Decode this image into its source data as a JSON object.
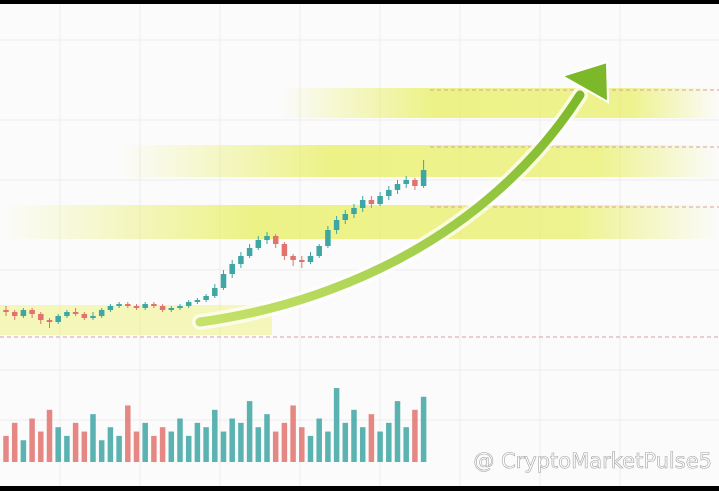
{
  "chart_data": {
    "type": "candlestick",
    "open": [
      15,
      14,
      12,
      15,
      13,
      10,
      9,
      12,
      14,
      13,
      11,
      12,
      15,
      17,
      18,
      17,
      16,
      18,
      17,
      15,
      16,
      17,
      19,
      20,
      22,
      26,
      33,
      38,
      42,
      46,
      50,
      52,
      48,
      42,
      40,
      39,
      42,
      47,
      55,
      60,
      63,
      66,
      70,
      68,
      72,
      75,
      78,
      80,
      77
    ],
    "close": [
      14,
      12,
      15,
      13,
      10,
      9,
      12,
      14,
      13,
      11,
      12,
      15,
      17,
      18,
      17,
      16,
      18,
      17,
      15,
      16,
      17,
      19,
      20,
      22,
      26,
      33,
      38,
      42,
      46,
      50,
      52,
      48,
      42,
      40,
      39,
      42,
      47,
      55,
      60,
      63,
      66,
      70,
      68,
      72,
      75,
      78,
      80,
      77,
      85
    ],
    "high": [
      17,
      15,
      16,
      16,
      14,
      11,
      13,
      15,
      16,
      14,
      14,
      16,
      18,
      19,
      19,
      18,
      19,
      19,
      18,
      17,
      18,
      20,
      21,
      23,
      28,
      35,
      40,
      44,
      48,
      52,
      54,
      53,
      49,
      43,
      42,
      44,
      48,
      57,
      62,
      65,
      68,
      72,
      72,
      74,
      77,
      80,
      82,
      81,
      90
    ],
    "low": [
      12,
      10,
      11,
      11,
      8,
      6,
      8,
      11,
      12,
      10,
      10,
      11,
      14,
      16,
      16,
      15,
      15,
      16,
      14,
      14,
      15,
      16,
      18,
      19,
      21,
      25,
      31,
      36,
      41,
      45,
      48,
      46,
      40,
      37,
      36,
      38,
      41,
      46,
      53,
      58,
      61,
      64,
      66,
      67,
      70,
      73,
      76,
      75,
      76
    ],
    "volume": [
      30,
      45,
      25,
      50,
      35,
      60,
      40,
      30,
      45,
      35,
      55,
      25,
      40,
      30,
      65,
      35,
      45,
      30,
      40,
      35,
      50,
      30,
      45,
      40,
      60,
      35,
      50,
      45,
      70,
      40,
      55,
      35,
      45,
      65,
      40,
      30,
      50,
      35,
      85,
      45,
      60,
      40,
      55,
      35,
      45,
      70,
      40,
      60,
      75
    ],
    "up_color": "#3ea6a3",
    "down_color": "#e0736f",
    "ylim": [
      0,
      100
    ],
    "volume_ylim": [
      0,
      100
    ]
  },
  "watermark": "@ CryptoMarketPulse5"
}
